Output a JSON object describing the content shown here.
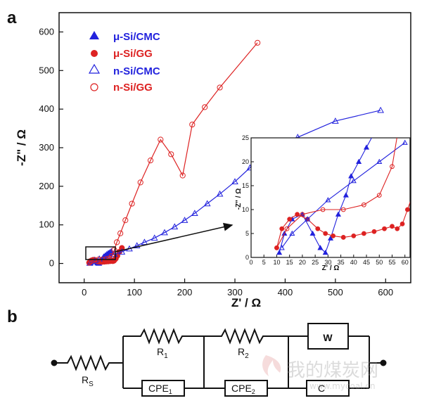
{
  "panel_a_label": "a",
  "panel_b_label": "b",
  "colors": {
    "blue": "#2222dd",
    "red": "#dd2222"
  },
  "chart_data": {
    "type": "scatter",
    "xlabel": "Z' / Ω",
    "ylabel": "-Z\" / Ω",
    "xlim": [
      -50,
      650
    ],
    "ylim": [
      -50,
      650
    ],
    "xticks": [
      "0",
      "100",
      "200",
      "300",
      "400",
      "500",
      "600"
    ],
    "yticks": [
      "0",
      "100",
      "200",
      "300",
      "400",
      "500",
      "600"
    ],
    "legend_position": "top-left",
    "series": [
      {
        "name": "μ-Si/CMC",
        "color": "#2222dd",
        "marker": "triangle-filled",
        "points": [
          [
            11,
            1
          ],
          [
            13,
            5
          ],
          [
            16,
            8
          ],
          [
            20,
            9
          ],
          [
            24,
            5
          ],
          [
            27,
            2
          ],
          [
            29,
            1
          ],
          [
            31,
            4
          ],
          [
            34,
            9
          ],
          [
            37,
            13
          ],
          [
            39,
            17
          ],
          [
            42,
            20
          ],
          [
            45,
            23
          ],
          [
            48,
            26
          ],
          [
            51,
            28
          ],
          [
            54,
            31
          ]
        ]
      },
      {
        "name": "μ-Si/GG",
        "color": "#dd2222",
        "marker": "circle-filled",
        "points": [
          [
            10,
            2
          ],
          [
            12,
            6
          ],
          [
            15,
            8
          ],
          [
            18,
            9
          ],
          [
            22,
            8
          ],
          [
            26,
            6
          ],
          [
            29,
            5
          ],
          [
            32,
            4.5
          ],
          [
            36,
            4.2
          ],
          [
            40,
            4.5
          ],
          [
            44,
            5
          ],
          [
            48,
            5.4
          ],
          [
            52,
            6
          ],
          [
            55,
            6.5
          ],
          [
            57,
            6
          ],
          [
            59,
            7
          ],
          [
            61,
            10
          ],
          [
            63,
            13
          ],
          [
            66,
            20
          ],
          [
            70,
            30
          ],
          [
            75,
            40
          ]
        ]
      },
      {
        "name": "n-Si/CMC",
        "color": "#2222dd",
        "marker": "triangle-open",
        "points": [
          [
            12,
            2
          ],
          [
            16,
            5
          ],
          [
            22,
            8
          ],
          [
            30,
            12
          ],
          [
            40,
            16
          ],
          [
            50,
            20
          ],
          [
            60,
            24
          ],
          [
            75,
            30
          ],
          [
            90,
            38
          ],
          [
            105,
            46
          ],
          [
            120,
            55
          ],
          [
            140,
            66
          ],
          [
            160,
            80
          ],
          [
            180,
            95
          ],
          [
            200,
            112
          ],
          [
            220,
            130
          ],
          [
            245,
            155
          ],
          [
            270,
            180
          ],
          [
            300,
            212
          ],
          [
            330,
            248
          ],
          [
            370,
            290
          ],
          [
            425,
            327
          ],
          [
            500,
            369
          ],
          [
            590,
            397
          ]
        ]
      },
      {
        "name": "n-Si/GG",
        "color": "#dd2222",
        "marker": "circle-open",
        "points": [
          [
            10,
            2
          ],
          [
            14,
            6
          ],
          [
            20,
            9
          ],
          [
            28,
            10
          ],
          [
            36,
            10
          ],
          [
            44,
            11
          ],
          [
            50,
            13
          ],
          [
            55,
            19
          ],
          [
            60,
            35
          ],
          [
            65,
            55
          ],
          [
            72,
            78
          ],
          [
            82,
            112
          ],
          [
            95,
            155
          ],
          [
            112,
            210
          ],
          [
            132,
            267
          ],
          [
            152,
            321
          ],
          [
            173,
            283
          ],
          [
            196,
            228
          ],
          [
            215,
            360
          ],
          [
            240,
            405
          ],
          [
            270,
            456
          ],
          [
            345,
            572
          ]
        ]
      }
    ],
    "inset": {
      "xlabel": "Z' / Ω",
      "ylabel": "-Z\" / Ω",
      "xlim": [
        0,
        62
      ],
      "ylim": [
        0,
        25
      ],
      "xticks": [
        "0",
        "5",
        "10",
        "15",
        "20",
        "25",
        "30",
        "35",
        "40",
        "45",
        "50",
        "55",
        "60"
      ],
      "yticks": [
        "0",
        "5",
        "10",
        "15",
        "20",
        "25"
      ]
    }
  },
  "circuit": {
    "rs_label": "R",
    "rs_sub": "S",
    "r1_label": "R",
    "r1_sub": "1",
    "r2_label": "R",
    "r2_sub": "2",
    "cpe1_label": "CPE",
    "cpe1_sub": "1",
    "cpe2_label": "CPE",
    "cpe2_sub": "2",
    "w_label": "W",
    "c_label": "C"
  },
  "watermark": {
    "text": "我的煤炭网",
    "url": "www.mycoal.cn"
  }
}
